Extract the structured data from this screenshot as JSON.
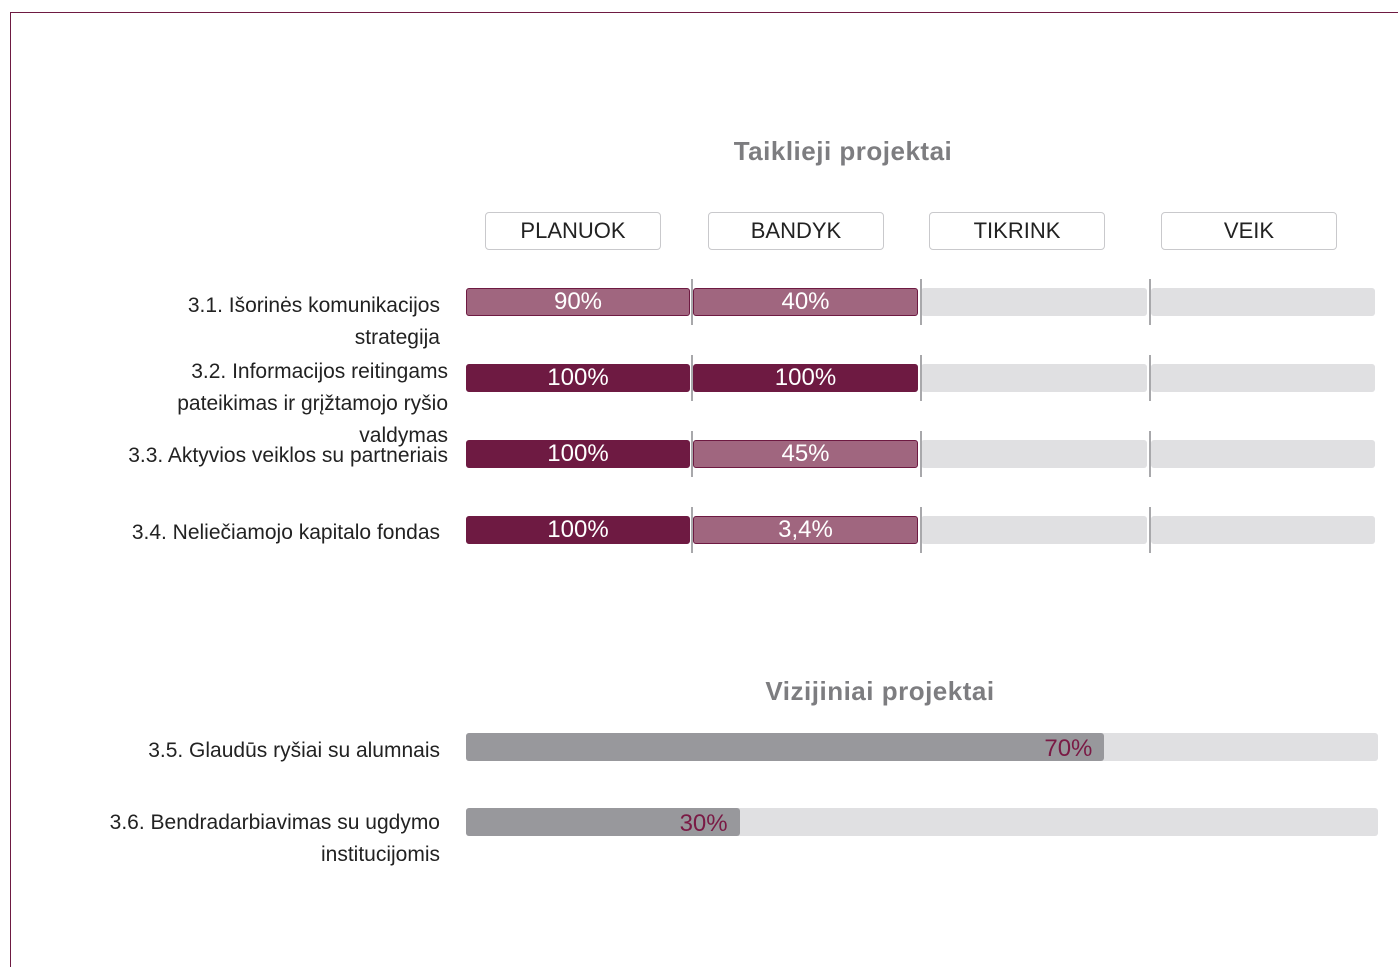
{
  "sections": [
    {
      "title": "Taiklieji projektai",
      "stages": [
        "PLANUOK",
        "BANDYK",
        "TIKRINK",
        "VEIK"
      ],
      "rows": [
        {
          "label": "3.1. Išorinės komunikacijos strategija",
          "values": [
            90,
            40
          ],
          "value_labels": [
            "90%",
            "40%"
          ]
        },
        {
          "label": "3.2. Informacijos reitingams pateikimas ir grįžtamojo ryšio valdymas",
          "values": [
            100,
            100
          ],
          "value_labels": [
            "100%",
            "100%"
          ]
        },
        {
          "label": "3.3. Aktyvios veiklos su partneriais",
          "values": [
            100,
            45
          ],
          "value_labels": [
            "100%",
            "45%"
          ]
        },
        {
          "label": "3.4. Neliečiamojo kapitalo fondas",
          "values": [
            100,
            3.4
          ],
          "value_labels": [
            "100%",
            "3,4%"
          ]
        }
      ]
    },
    {
      "title": "Vizijiniai projektai",
      "rows": [
        {
          "label": "3.5. Glaudūs ryšiai su alumnais",
          "values": [
            70
          ],
          "value_labels": [
            "70%"
          ]
        },
        {
          "label": "3.6. Bendradarbiavimas su ugdymo institucijomis",
          "values": [
            30
          ],
          "value_labels": [
            "30%"
          ]
        }
      ]
    }
  ]
}
